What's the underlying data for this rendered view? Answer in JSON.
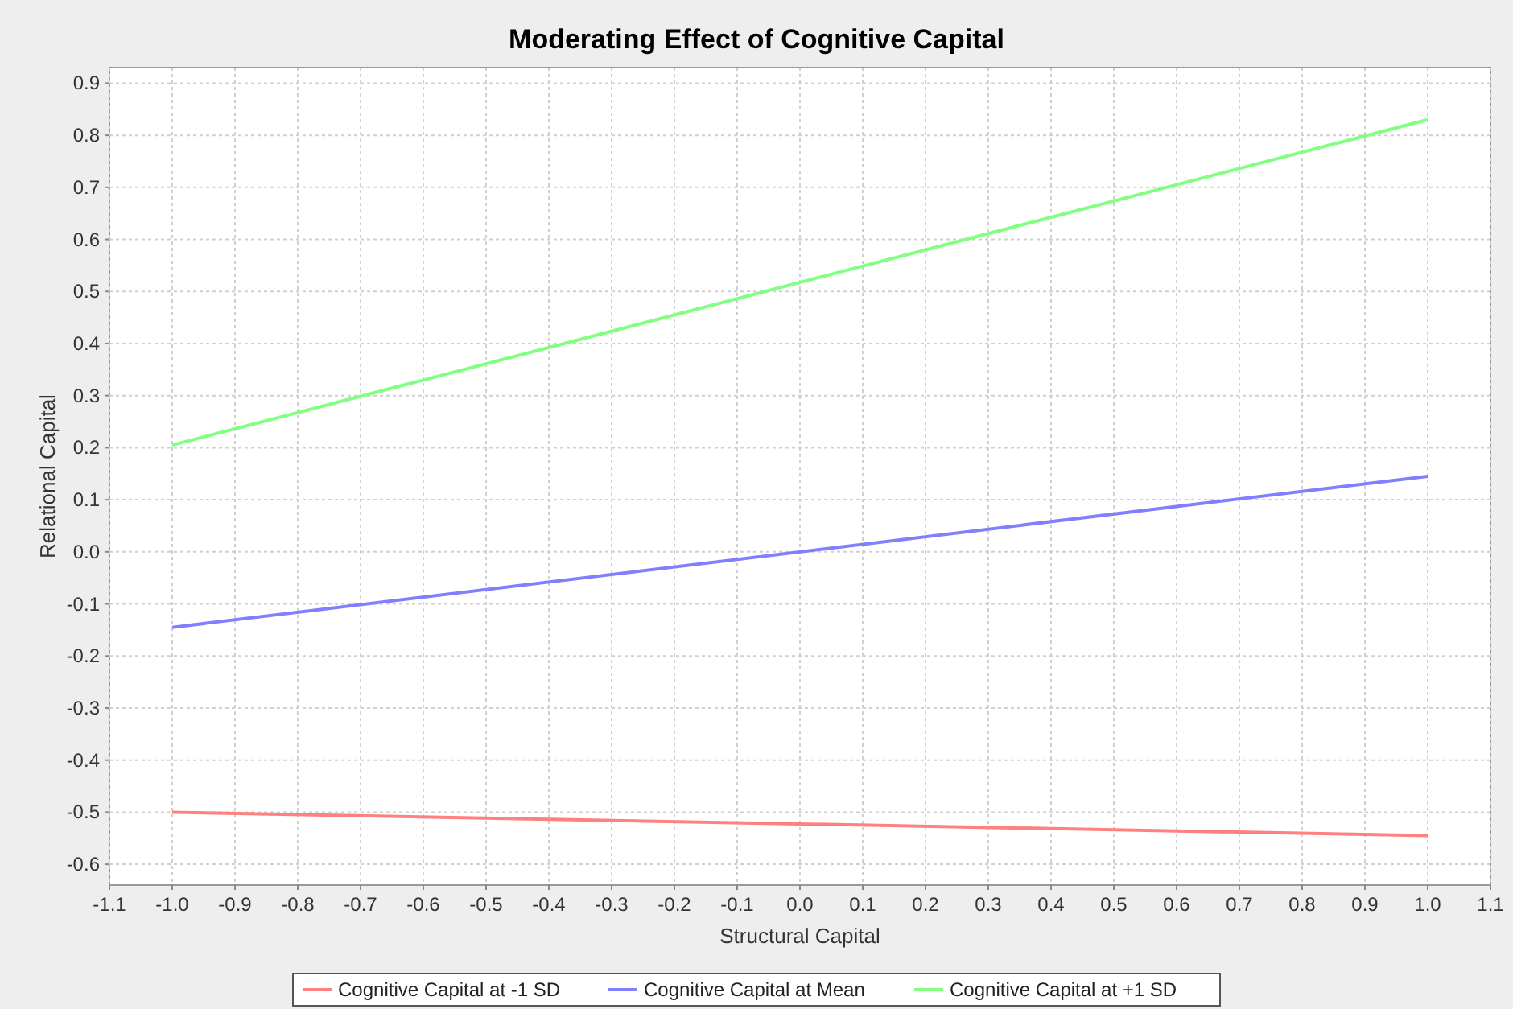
{
  "chart_data": {
    "type": "line",
    "title": "Moderating Effect of Cognitive Capital",
    "xlabel": "Structural Capital",
    "ylabel": "Relational Capital",
    "x": [
      -1.0,
      1.0
    ],
    "series": [
      {
        "name": "Cognitive Capital at -1 SD",
        "color": "#ff8080",
        "values": [
          -0.5,
          -0.545
        ]
      },
      {
        "name": "Cognitive Capital at Mean",
        "color": "#8080ff",
        "values": [
          -0.145,
          0.145
        ]
      },
      {
        "name": "Cognitive Capital at +1 SD",
        "color": "#80ff80",
        "values": [
          0.205,
          0.83
        ]
      }
    ],
    "xlim": [
      -1.1,
      1.1
    ],
    "xticks": [
      -1.1,
      {
        "value": -1.0,
        "label": "-1.0"
      },
      -0.9,
      -0.8,
      -0.7,
      -0.6,
      -0.5,
      -0.4,
      -0.3,
      -0.2,
      -0.1,
      {
        "value": 0,
        "label": "0.0"
      },
      0.1,
      0.2,
      0.3,
      0.4,
      0.5,
      0.6,
      0.7,
      0.8,
      0.9,
      {
        "value": 1.0,
        "label": "1.0"
      },
      1.1
    ],
    "ylim": [
      -0.64,
      0.93
    ],
    "yticks": [
      -0.6,
      -0.5,
      -0.4,
      -0.3,
      -0.2,
      -0.1,
      {
        "value": 0,
        "label": "0.0"
      },
      0.1,
      0.2,
      0.3,
      0.4,
      0.5,
      0.6,
      0.7,
      0.8,
      0.9
    ],
    "grid": true,
    "legend": "bottom",
    "line_style": "solid",
    "marker": "none"
  }
}
